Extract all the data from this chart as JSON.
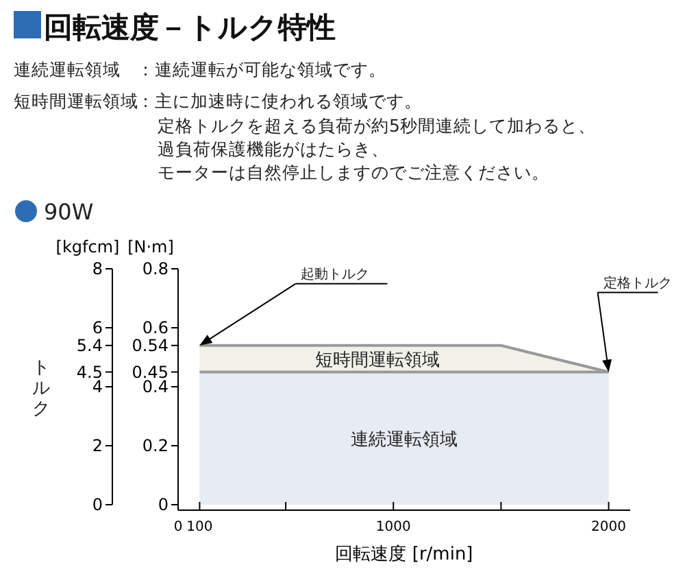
{
  "chart_data": {
    "type": "area",
    "title": "回転速度－トルク特性",
    "subtitle": "90W",
    "xlabel": "回転速度 [r/min]",
    "ylabel": "[N·m]",
    "y2label": "[kgfcm]",
    "annotations": [
      "連続運転領域",
      "：連続運転が可能な領域です。",
      "短時間運転領域",
      "：主に加速時に使われる領域です。",
      "定格トルクを超える負荷が約5秒間連続して加わると、",
      "過負荷保護機能がはたらき、",
      "モーターは自然停止しますのでご注意ください。",
      "トルク",
      {
        "text": "起動トルク",
        "x": 100,
        "y": 0.54
      },
      {
        "text": "定格トルク",
        "x": 2000,
        "y": 0.45
      }
    ],
    "series": [
      {
        "name": "短時間運転領域",
        "color": "#f1f1ea",
        "x": [
          100,
          1500,
          2000
        ],
        "values": [
          0.54,
          0.54,
          0.45
        ]
      },
      {
        "name": "連続運転領域",
        "color": "#e7ebf3",
        "x": [
          100,
          2000
        ],
        "values": [
          0.45,
          0.45
        ]
      }
    ],
    "xlim": [
      0,
      2100
    ],
    "xticks": [
      0,
      100,
      {
        "value": 500,
        "label": null
      },
      1000,
      {
        "value": 1500,
        "label": null
      },
      2000
    ],
    "ylim": [
      0,
      0.8
    ],
    "yticks": [
      0,
      0.2,
      0.4,
      0.45,
      0.54,
      0.6,
      0.8
    ],
    "y2lim": [
      0,
      8
    ],
    "y2ticks": [
      0,
      2,
      4,
      4.5,
      5.4,
      6,
      8
    ]
  }
}
